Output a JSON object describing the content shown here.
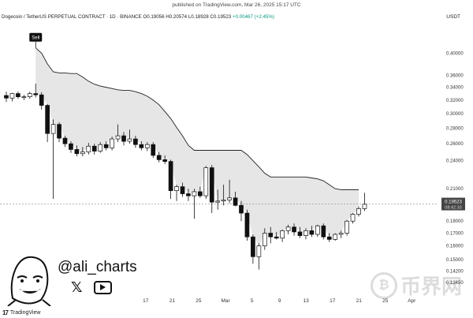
{
  "header": {
    "published": "published on TradingView.com, Mar 26, 2025 15:17 UTC",
    "title": "Dogecoin / TetherUS PERPETUAL CONTRACT · 1D · BINANCE",
    "ohlc": "O0.19056 H0.20574 L0.18928 C0.19523",
    "change": "+0.00467 (+2.45%)",
    "currency": "USDT"
  },
  "author": {
    "handle": "@ali_charts"
  },
  "brand": {
    "name": "TradingView"
  },
  "watermark": {
    "text": "币界网"
  },
  "colors": {
    "candle_up": "#ffffff",
    "candle_down": "#111111",
    "supertrend": "#222222",
    "fill": "#e6e6e6",
    "last_price_label": "#444444"
  },
  "chart_data": {
    "type": "candlestick",
    "title": "Dogecoin / TetherUS PERPETUAL CONTRACT · 1D · BINANCE",
    "ylabel": "USDT",
    "y_scale": "log",
    "ylim": [
      0.13,
      0.43
    ],
    "yticks": [
      "0.40000",
      "0.36000",
      "0.34000",
      "0.32000",
      "0.30000",
      "0.28000",
      "0.26000",
      "0.24000",
      "0.21000",
      "0.18000",
      "0.17000",
      "0.16000",
      "0.15000",
      "0.14200",
      "0.13450"
    ],
    "x_ticks": [
      "17",
      "21",
      "25",
      "Mar",
      "5",
      "9",
      "13",
      "17",
      "21",
      "25",
      "Apr"
    ],
    "last_price": "0.19523",
    "countdown": "08:42:33",
    "signal": "Sell",
    "candles": [
      {
        "o": 0.327,
        "h": 0.333,
        "l": 0.317,
        "c": 0.323
      },
      {
        "o": 0.323,
        "h": 0.331,
        "l": 0.318,
        "c": 0.33
      },
      {
        "o": 0.33,
        "h": 0.333,
        "l": 0.322,
        "c": 0.325
      },
      {
        "o": 0.325,
        "h": 0.328,
        "l": 0.32,
        "c": 0.325
      },
      {
        "o": 0.325,
        "h": 0.333,
        "l": 0.322,
        "c": 0.33
      },
      {
        "o": 0.33,
        "h": 0.346,
        "l": 0.324,
        "c": 0.328
      },
      {
        "o": 0.328,
        "h": 0.332,
        "l": 0.306,
        "c": 0.312
      },
      {
        "o": 0.312,
        "h": 0.314,
        "l": 0.262,
        "c": 0.273
      },
      {
        "o": 0.273,
        "h": 0.292,
        "l": 0.2,
        "c": 0.285
      },
      {
        "o": 0.285,
        "h": 0.288,
        "l": 0.262,
        "c": 0.267
      },
      {
        "o": 0.267,
        "h": 0.27,
        "l": 0.256,
        "c": 0.26
      },
      {
        "o": 0.26,
        "h": 0.263,
        "l": 0.249,
        "c": 0.253
      },
      {
        "o": 0.253,
        "h": 0.258,
        "l": 0.245,
        "c": 0.248
      },
      {
        "o": 0.248,
        "h": 0.256,
        "l": 0.245,
        "c": 0.25
      },
      {
        "o": 0.25,
        "h": 0.261,
        "l": 0.247,
        "c": 0.257
      },
      {
        "o": 0.257,
        "h": 0.26,
        "l": 0.247,
        "c": 0.251
      },
      {
        "o": 0.251,
        "h": 0.262,
        "l": 0.249,
        "c": 0.259
      },
      {
        "o": 0.259,
        "h": 0.263,
        "l": 0.252,
        "c": 0.255
      },
      {
        "o": 0.255,
        "h": 0.269,
        "l": 0.252,
        "c": 0.266
      },
      {
        "o": 0.266,
        "h": 0.285,
        "l": 0.262,
        "c": 0.27
      },
      {
        "o": 0.27,
        "h": 0.275,
        "l": 0.258,
        "c": 0.263
      },
      {
        "o": 0.263,
        "h": 0.278,
        "l": 0.26,
        "c": 0.266
      },
      {
        "o": 0.266,
        "h": 0.27,
        "l": 0.255,
        "c": 0.259
      },
      {
        "o": 0.259,
        "h": 0.263,
        "l": 0.252,
        "c": 0.255
      },
      {
        "o": 0.255,
        "h": 0.262,
        "l": 0.251,
        "c": 0.259
      },
      {
        "o": 0.259,
        "h": 0.262,
        "l": 0.243,
        "c": 0.246
      },
      {
        "o": 0.246,
        "h": 0.25,
        "l": 0.238,
        "c": 0.241
      },
      {
        "o": 0.241,
        "h": 0.246,
        "l": 0.236,
        "c": 0.239
      },
      {
        "o": 0.239,
        "h": 0.241,
        "l": 0.2,
        "c": 0.208
      },
      {
        "o": 0.208,
        "h": 0.214,
        "l": 0.198,
        "c": 0.212
      },
      {
        "o": 0.212,
        "h": 0.216,
        "l": 0.202,
        "c": 0.205
      },
      {
        "o": 0.205,
        "h": 0.21,
        "l": 0.198,
        "c": 0.203
      },
      {
        "o": 0.203,
        "h": 0.21,
        "l": 0.182,
        "c": 0.207
      },
      {
        "o": 0.207,
        "h": 0.212,
        "l": 0.201,
        "c": 0.203
      },
      {
        "o": 0.203,
        "h": 0.234,
        "l": 0.2,
        "c": 0.232
      },
      {
        "o": 0.232,
        "h": 0.235,
        "l": 0.187,
        "c": 0.197
      },
      {
        "o": 0.197,
        "h": 0.209,
        "l": 0.19,
        "c": 0.198
      },
      {
        "o": 0.198,
        "h": 0.214,
        "l": 0.194,
        "c": 0.199
      },
      {
        "o": 0.199,
        "h": 0.219,
        "l": 0.196,
        "c": 0.201
      },
      {
        "o": 0.201,
        "h": 0.207,
        "l": 0.193,
        "c": 0.194
      },
      {
        "o": 0.194,
        "h": 0.198,
        "l": 0.18,
        "c": 0.187
      },
      {
        "o": 0.187,
        "h": 0.19,
        "l": 0.164,
        "c": 0.167
      },
      {
        "o": 0.167,
        "h": 0.169,
        "l": 0.147,
        "c": 0.152
      },
      {
        "o": 0.152,
        "h": 0.162,
        "l": 0.143,
        "c": 0.16
      },
      {
        "o": 0.16,
        "h": 0.174,
        "l": 0.157,
        "c": 0.17
      },
      {
        "o": 0.17,
        "h": 0.175,
        "l": 0.162,
        "c": 0.167
      },
      {
        "o": 0.167,
        "h": 0.171,
        "l": 0.165,
        "c": 0.166
      },
      {
        "o": 0.166,
        "h": 0.173,
        "l": 0.163,
        "c": 0.172
      },
      {
        "o": 0.172,
        "h": 0.177,
        "l": 0.169,
        "c": 0.175
      },
      {
        "o": 0.175,
        "h": 0.178,
        "l": 0.168,
        "c": 0.171
      },
      {
        "o": 0.171,
        "h": 0.175,
        "l": 0.166,
        "c": 0.168
      },
      {
        "o": 0.168,
        "h": 0.174,
        "l": 0.165,
        "c": 0.172
      },
      {
        "o": 0.172,
        "h": 0.176,
        "l": 0.167,
        "c": 0.169
      },
      {
        "o": 0.169,
        "h": 0.177,
        "l": 0.167,
        "c": 0.176
      },
      {
        "o": 0.176,
        "h": 0.178,
        "l": 0.165,
        "c": 0.167
      },
      {
        "o": 0.167,
        "h": 0.17,
        "l": 0.163,
        "c": 0.165
      },
      {
        "o": 0.165,
        "h": 0.17,
        "l": 0.164,
        "c": 0.169
      },
      {
        "o": 0.169,
        "h": 0.172,
        "l": 0.166,
        "c": 0.17
      },
      {
        "o": 0.17,
        "h": 0.181,
        "l": 0.168,
        "c": 0.18
      },
      {
        "o": 0.18,
        "h": 0.187,
        "l": 0.178,
        "c": 0.186
      },
      {
        "o": 0.186,
        "h": 0.193,
        "l": 0.184,
        "c": 0.191
      },
      {
        "o": 0.191,
        "h": 0.206,
        "l": 0.189,
        "c": 0.195
      }
    ],
    "supertrend": [
      null,
      null,
      null,
      null,
      null,
      0.41,
      0.4,
      0.38,
      0.366,
      0.364,
      0.364,
      0.363,
      0.363,
      0.357,
      0.35,
      0.345,
      0.342,
      0.34,
      0.338,
      0.336,
      0.335,
      0.335,
      0.333,
      0.33,
      0.326,
      0.32,
      0.313,
      0.303,
      0.293,
      0.281,
      0.27,
      0.258,
      0.252,
      0.252,
      0.252,
      0.252,
      0.252,
      0.252,
      0.252,
      0.252,
      0.252,
      0.247,
      0.24,
      0.233,
      0.226,
      0.222,
      0.222,
      0.222,
      0.222,
      0.222,
      0.222,
      0.222,
      0.221,
      0.22,
      0.218,
      0.214,
      0.21,
      0.209,
      0.209,
      0.209,
      0.209,
      null
    ]
  }
}
